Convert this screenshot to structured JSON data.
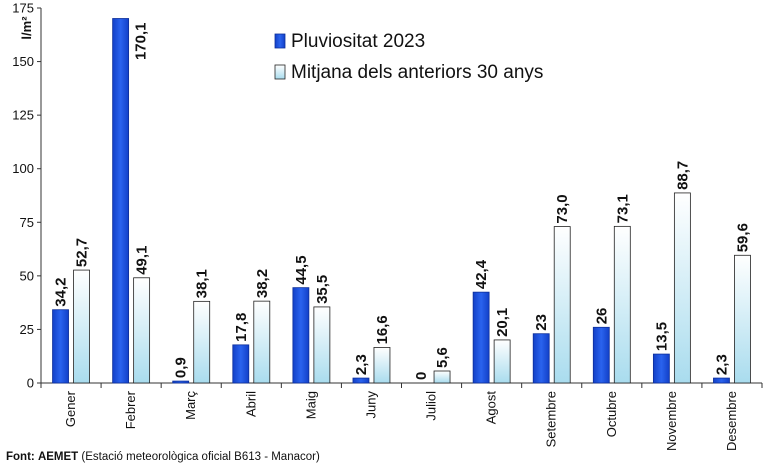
{
  "chart_data": {
    "type": "bar",
    "ylabel": "l/m²",
    "ylim": [
      0,
      175
    ],
    "yticks": [
      0,
      25,
      50,
      75,
      100,
      125,
      150,
      175
    ],
    "categories": [
      "Gener",
      "Febrer",
      "Març",
      "Abril",
      "Maig",
      "Juny",
      "Juliol",
      "Agost",
      "Setembre",
      "Octubre",
      "Novembre",
      "Desembre"
    ],
    "series": [
      {
        "name": "Pluviositat 2023",
        "color": "#1a4fd6",
        "values": [
          34.2,
          170.1,
          0.9,
          17.8,
          44.5,
          2.3,
          0,
          42.4,
          23,
          26,
          13.5,
          2.3
        ],
        "labels": [
          "34,2",
          "170,1",
          "0,9",
          "17,8",
          "44,5",
          "2,3",
          "0",
          "42,4",
          "23",
          "26",
          "13,5",
          "2,3"
        ]
      },
      {
        "name": "Mitjana dels anteriors 30 anys",
        "color": "#bfe6f4",
        "values": [
          52.7,
          49.1,
          38.1,
          38.2,
          35.5,
          16.6,
          5.6,
          20.1,
          73.0,
          73.1,
          88.7,
          59.6
        ],
        "labels": [
          "52,7",
          "49,1",
          "38,1",
          "38,2",
          "35,5",
          "16,6",
          "5,6",
          "20,1",
          "73,0",
          "73,1",
          "88,7",
          "59,6"
        ]
      }
    ],
    "legend": "top-right"
  },
  "source": {
    "prefix": "Font:",
    "org": "AEMET",
    "detail": "(Estació meteorològica oficial B613 - Manacor)"
  }
}
